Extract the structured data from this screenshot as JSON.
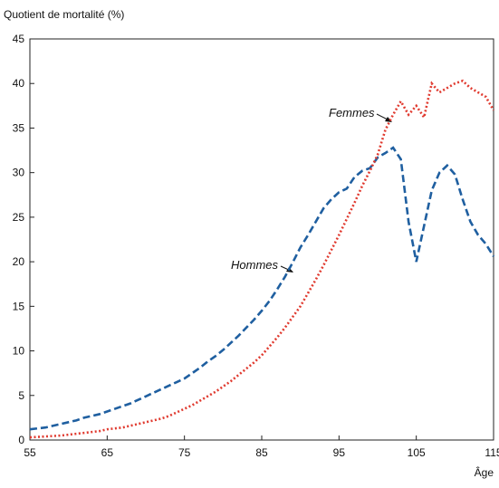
{
  "chart_data": {
    "type": "line",
    "y_label": "Quotient de mortalité (%)",
    "x_label": "Âge",
    "x": [
      55,
      56,
      57,
      58,
      59,
      60,
      61,
      62,
      63,
      64,
      65,
      66,
      67,
      68,
      69,
      70,
      71,
      72,
      73,
      74,
      75,
      76,
      77,
      78,
      79,
      80,
      81,
      82,
      83,
      84,
      85,
      86,
      87,
      88,
      89,
      90,
      91,
      92,
      93,
      94,
      95,
      96,
      97,
      98,
      99,
      100,
      101,
      102,
      103,
      104,
      105,
      106,
      107,
      108,
      109,
      110,
      111,
      112,
      113,
      114,
      115
    ],
    "series": [
      {
        "name": "Hommes",
        "color": "#1f5fa0",
        "dash": "8,4",
        "values": [
          1.2,
          1.3,
          1.4,
          1.6,
          1.8,
          2.0,
          2.2,
          2.5,
          2.7,
          2.9,
          3.2,
          3.5,
          3.8,
          4.1,
          4.5,
          4.9,
          5.3,
          5.7,
          6.1,
          6.5,
          6.9,
          7.5,
          8.1,
          8.8,
          9.4,
          10.1,
          10.9,
          11.7,
          12.6,
          13.5,
          14.5,
          15.6,
          16.9,
          18.3,
          19.9,
          21.6,
          23.0,
          24.5,
          26.0,
          27.0,
          27.8,
          28.2,
          29.5,
          30.2,
          30.5,
          31.7,
          32.2,
          32.8,
          31.5,
          24.5,
          20.0,
          24.0,
          28.0,
          30.0,
          30.8,
          29.8,
          27.0,
          24.5,
          23.0,
          22.0,
          20.6
        ]
      },
      {
        "name": "Femmes",
        "color": "#e03a2f",
        "dash": "2,2.5",
        "values": [
          0.3,
          0.35,
          0.4,
          0.45,
          0.5,
          0.6,
          0.7,
          0.8,
          0.9,
          1.0,
          1.2,
          1.3,
          1.4,
          1.6,
          1.8,
          2.0,
          2.2,
          2.4,
          2.7,
          3.1,
          3.5,
          3.9,
          4.4,
          4.9,
          5.4,
          6.0,
          6.6,
          7.3,
          8.0,
          8.7,
          9.5,
          10.5,
          11.5,
          12.6,
          13.8,
          15.0,
          16.5,
          18.0,
          19.6,
          21.3,
          23.0,
          24.8,
          26.6,
          28.5,
          30.2,
          32.0,
          34.8,
          36.5,
          38.0,
          36.5,
          37.5,
          36.2,
          40.0,
          39.0,
          39.5,
          40.0,
          40.3,
          39.5,
          39.0,
          38.5,
          37.0
        ]
      }
    ],
    "xlim": [
      55,
      115
    ],
    "xticks": [
      55,
      65,
      75,
      85,
      95,
      105,
      115
    ],
    "ylim": [
      0,
      45
    ],
    "yticks": [
      0,
      5,
      10,
      15,
      20,
      25,
      30,
      35,
      40,
      45
    ],
    "grid": false
  }
}
